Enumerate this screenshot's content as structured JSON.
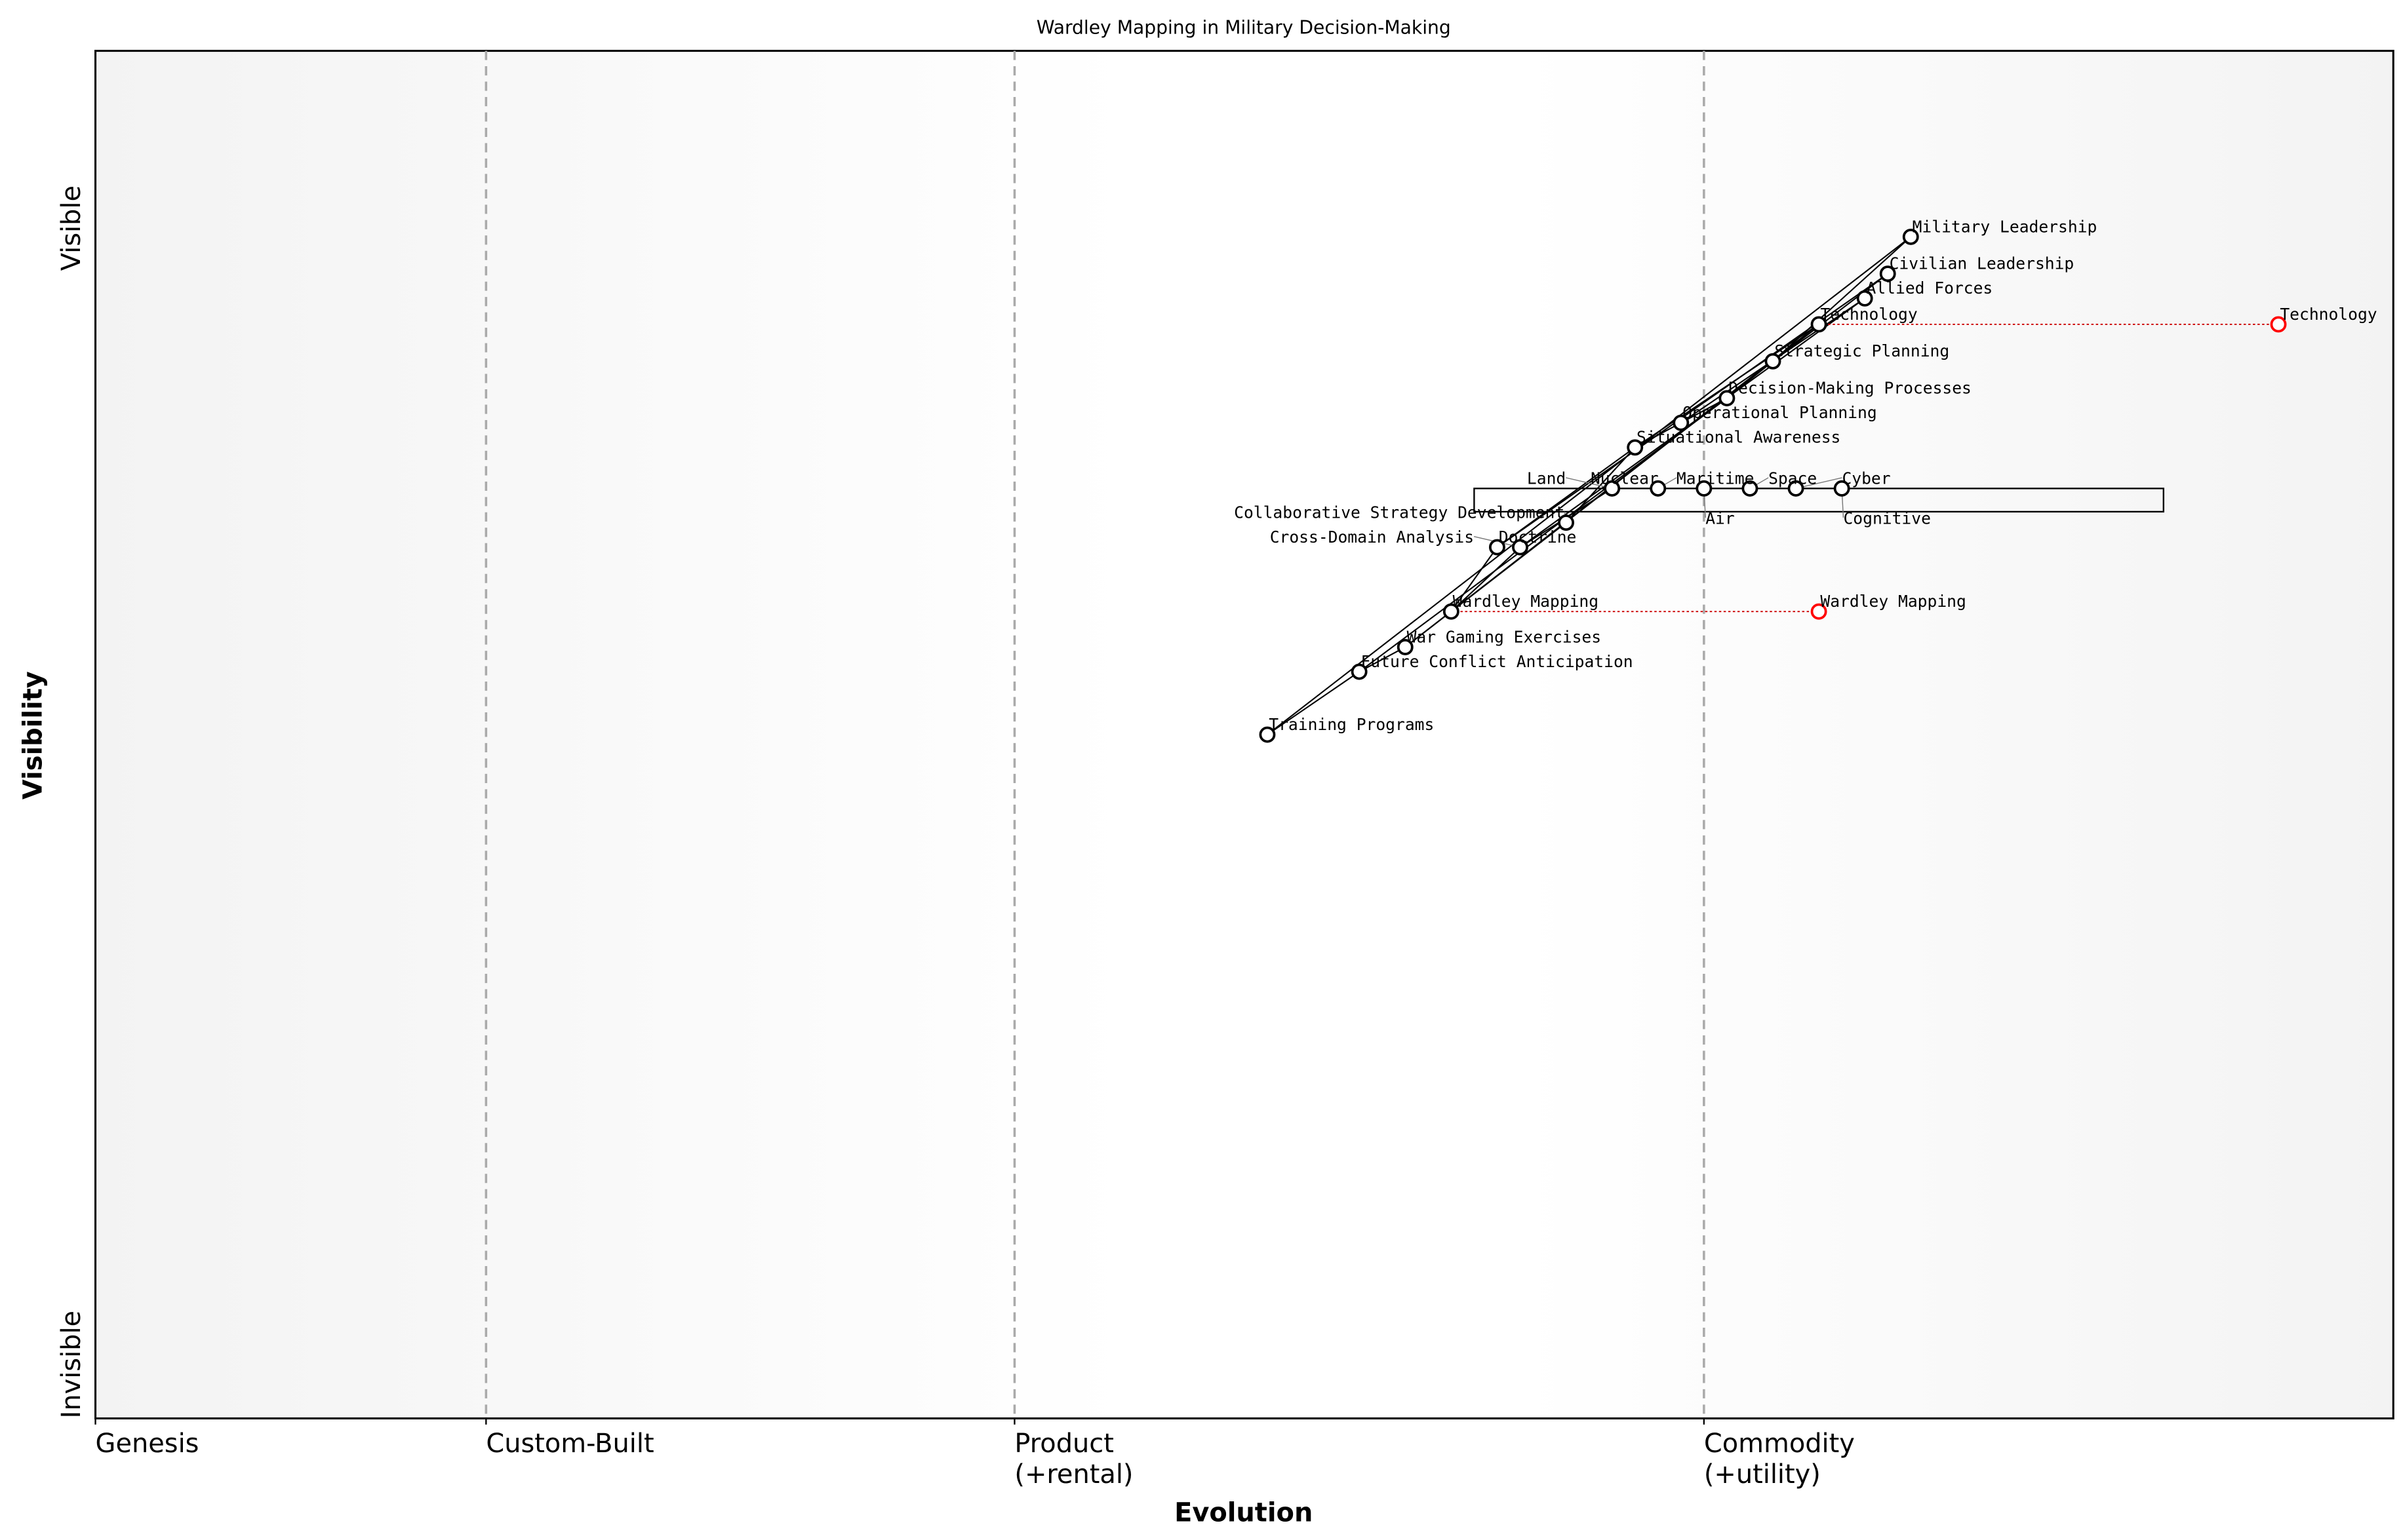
{
  "chart_data": {
    "type": "scatter",
    "title": "Wardley Mapping in Military Decision-Making",
    "xlabel": "Evolution",
    "ylabel": "Visibility",
    "xlim": [
      0,
      1
    ],
    "ylim": [
      0,
      1
    ],
    "x_stage_labels": [
      "Genesis",
      "Custom-Built",
      "Product\n(+rental)",
      "Commodity\n(+utility)"
    ],
    "x_stage_positions": [
      0,
      0.17,
      0.4,
      0.7
    ],
    "y_labels": {
      "top": "Visible",
      "bottom": "Invisible"
    },
    "grid": false,
    "colors": {
      "node": "#000000",
      "evolved_node": "#ff0000",
      "evolution_line": "#cc0000",
      "stage_line": "#aaaaaa"
    },
    "components": [
      {
        "name": "Military Leadership",
        "x": 0.79,
        "y": 0.864
      },
      {
        "name": "Civilian Leadership",
        "x": 0.78,
        "y": 0.837
      },
      {
        "name": "Allied Forces",
        "x": 0.77,
        "y": 0.819
      },
      {
        "name": "Technology",
        "x": 0.75,
        "y": 0.8
      },
      {
        "name": "Strategic Planning",
        "x": 0.73,
        "y": 0.773
      },
      {
        "name": "Decision-Making Processes",
        "x": 0.71,
        "y": 0.746
      },
      {
        "name": "Operational Planning",
        "x": 0.69,
        "y": 0.728
      },
      {
        "name": "Situational Awareness",
        "x": 0.67,
        "y": 0.71
      },
      {
        "name": "Nuclear",
        "x": 0.65,
        "y": 0.68
      },
      {
        "name": "Land",
        "x": 0.66,
        "y": 0.68
      },
      {
        "name": "Maritime",
        "x": 0.68,
        "y": 0.68
      },
      {
        "name": "Air",
        "x": 0.7,
        "y": 0.68
      },
      {
        "name": "Space",
        "x": 0.72,
        "y": 0.68
      },
      {
        "name": "Cyber",
        "x": 0.74,
        "y": 0.68
      },
      {
        "name": "Cognitive",
        "x": 0.76,
        "y": 0.68
      },
      {
        "name": "Collaborative Strategy Development",
        "x": 0.64,
        "y": 0.655
      },
      {
        "name": "Doctrine",
        "x": 0.61,
        "y": 0.637
      },
      {
        "name": "Cross-Domain Analysis",
        "x": 0.62,
        "y": 0.637
      },
      {
        "name": "Wardley Mapping",
        "x": 0.59,
        "y": 0.59
      },
      {
        "name": "War Gaming Exercises",
        "x": 0.57,
        "y": 0.564
      },
      {
        "name": "Future Conflict Anticipation",
        "x": 0.55,
        "y": 0.546
      },
      {
        "name": "Training Programs",
        "x": 0.51,
        "y": 0.5
      }
    ],
    "hidden_nodes": [
      "Nuclear"
    ],
    "links": [
      [
        "Military Leadership",
        "Strategic Planning"
      ],
      [
        "Military Leadership",
        "Training Programs"
      ],
      [
        "Civilian Leadership",
        "Strategic Planning"
      ],
      [
        "Civilian Leadership",
        "Doctrine"
      ],
      [
        "Allied Forces",
        "Operational Planning"
      ],
      [
        "Allied Forces",
        "Cross-Domain Analysis"
      ],
      [
        "Technology",
        "Situational Awareness"
      ],
      [
        "Technology",
        "Wardley Mapping"
      ],
      [
        "Strategic Planning",
        "Decision-Making Processes"
      ],
      [
        "Strategic Planning",
        "War Gaming Exercises"
      ],
      [
        "Decision-Making Processes",
        "Operational Planning"
      ],
      [
        "Decision-Making Processes",
        "Future Conflict Anticipation"
      ],
      [
        "Operational Planning",
        "Situational Awareness"
      ],
      [
        "Situational Awareness",
        "Collaborative Strategy Development"
      ],
      [
        "Situational Awareness",
        "Doctrine"
      ],
      [
        "Land",
        "Cross-Domain Analysis"
      ],
      [
        "Collaborative Strategy Development",
        "Wardley Mapping"
      ],
      [
        "Cross-Domain Analysis",
        "Wardley Mapping"
      ],
      [
        "Doctrine",
        "Wardley Mapping"
      ],
      [
        "Wardley Mapping",
        "War Gaming Exercises"
      ],
      [
        "War Gaming Exercises",
        "Future Conflict Anticipation"
      ],
      [
        "Future Conflict Anticipation",
        "Training Programs"
      ]
    ],
    "domain_link": [
      "Land",
      "Maritime",
      "Air",
      "Space",
      "Cyber",
      "Cognitive"
    ],
    "pipeline": {
      "x_start": 0.6,
      "x_end": 0.9,
      "y_top": 0.68,
      "y_bottom": 0.663
    },
    "evolutions": [
      {
        "name": "Technology",
        "from_x": 0.75,
        "to_x": 0.95,
        "y": 0.8
      },
      {
        "name": "Wardley Mapping",
        "from_x": 0.59,
        "to_x": 0.75,
        "y": 0.59
      }
    ]
  }
}
